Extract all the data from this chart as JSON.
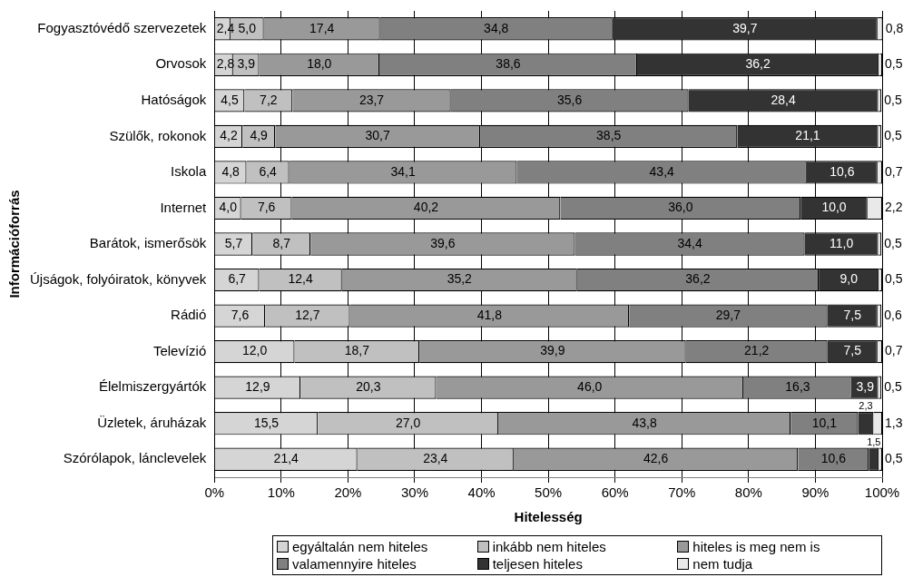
{
  "chart_data": {
    "type": "bar",
    "orientation": "horizontal",
    "stacked": true,
    "xlabel": "Hitelesség",
    "ylabel": "Információforrás",
    "categories": [
      "Fogyasztóvédő szervezetek",
      "Orvosok",
      "Hatóságok",
      "Szülők, rokonok",
      "Iskola",
      "Internet",
      "Barátok, ismerősök",
      "Újságok, folyóiratok, könyvek",
      "Rádió",
      "Televízió",
      "Élelmiszergyártók",
      "Üzletek, áruházak",
      "Szórólapok, lánclevelek"
    ],
    "series": [
      {
        "name": "egyáltalán nem hiteles",
        "color": "#d5d5d5",
        "values": [
          2.4,
          2.8,
          4.5,
          4.2,
          4.8,
          4.0,
          5.7,
          6.7,
          7.6,
          12.0,
          12.9,
          15.5,
          21.4
        ],
        "value_labels": [
          "2,4",
          "2,8",
          "4,5",
          "4,2",
          "4,8",
          "4,0",
          "5,7",
          "6,7",
          "7,6",
          "12,0",
          "12,9",
          "15,5",
          "21,4"
        ]
      },
      {
        "name": "inkább nem hiteles",
        "color": "#c0c0c0",
        "values": [
          5.0,
          3.9,
          7.2,
          4.9,
          6.4,
          7.6,
          8.7,
          12.4,
          12.7,
          18.7,
          20.3,
          27.0,
          23.4
        ],
        "value_labels": [
          "5,0",
          "3,9",
          "7,2",
          "4,9",
          "6,4",
          "7,6",
          "8,7",
          "12,4",
          "12,7",
          "18,7",
          "20,3",
          "27,0",
          "23,4"
        ]
      },
      {
        "name": "hiteles is meg nem is",
        "color": "#999999",
        "values": [
          17.4,
          18.0,
          23.7,
          30.7,
          34.1,
          40.2,
          39.6,
          35.2,
          41.8,
          39.9,
          46.0,
          43.8,
          42.6
        ],
        "value_labels": [
          "17,4",
          "18,0",
          "23,7",
          "30,7",
          "34,1",
          "40,2",
          "39,6",
          "35,2",
          "41,8",
          "39,9",
          "46,0",
          "43,8",
          "42,6"
        ]
      },
      {
        "name": "valamennyire hiteles",
        "color": "#808080",
        "values": [
          34.8,
          38.6,
          35.6,
          38.5,
          43.4,
          36.0,
          34.4,
          36.2,
          29.7,
          21.2,
          16.3,
          10.1,
          10.6
        ],
        "value_labels": [
          "34,8",
          "38,6",
          "35,6",
          "38,5",
          "43,4",
          "36,0",
          "34,4",
          "36,2",
          "29,7",
          "21,2",
          "16,3",
          "10,1",
          "10,6"
        ]
      },
      {
        "name": "teljesen hiteles",
        "color": "#333333",
        "values": [
          39.7,
          36.2,
          28.4,
          21.1,
          10.6,
          10.0,
          11.0,
          9.0,
          7.5,
          7.5,
          3.9,
          2.3,
          1.5
        ],
        "value_labels": [
          "39,7",
          "36,2",
          "28,4",
          "21,1",
          "10,6",
          "10,0",
          "11,0",
          "9,0",
          "7,5",
          "7,5",
          "3,9",
          "2,3",
          "1,5"
        ]
      },
      {
        "name": "nem tudja",
        "color": "#e9e9e9",
        "values": [
          0.8,
          0.5,
          0.5,
          0.5,
          0.7,
          2.2,
          0.5,
          0.5,
          0.6,
          0.7,
          0.5,
          1.3,
          0.5
        ],
        "value_labels": [
          "0,8",
          "0,5",
          "0,5",
          "0,5",
          "0,7",
          "2,2",
          "0,5",
          "0,5",
          "0,6",
          "0,7",
          "0,5",
          "1,3",
          "0,5"
        ]
      }
    ],
    "xlim": [
      0,
      100
    ],
    "xticks": [
      {
        "value": 0,
        "label": "0%"
      },
      {
        "value": 10,
        "label": "10%"
      },
      {
        "value": 20,
        "label": "20%"
      },
      {
        "value": 30,
        "label": "30%"
      },
      {
        "value": 40,
        "label": "40%"
      },
      {
        "value": 50,
        "label": "50%"
      },
      {
        "value": 60,
        "label": "60%"
      },
      {
        "value": 70,
        "label": "70%"
      },
      {
        "value": 80,
        "label": "80%"
      },
      {
        "value": 90,
        "label": "90%"
      },
      {
        "value": 100,
        "label": "100%"
      }
    ],
    "grid": "x",
    "legend": "bottom"
  }
}
